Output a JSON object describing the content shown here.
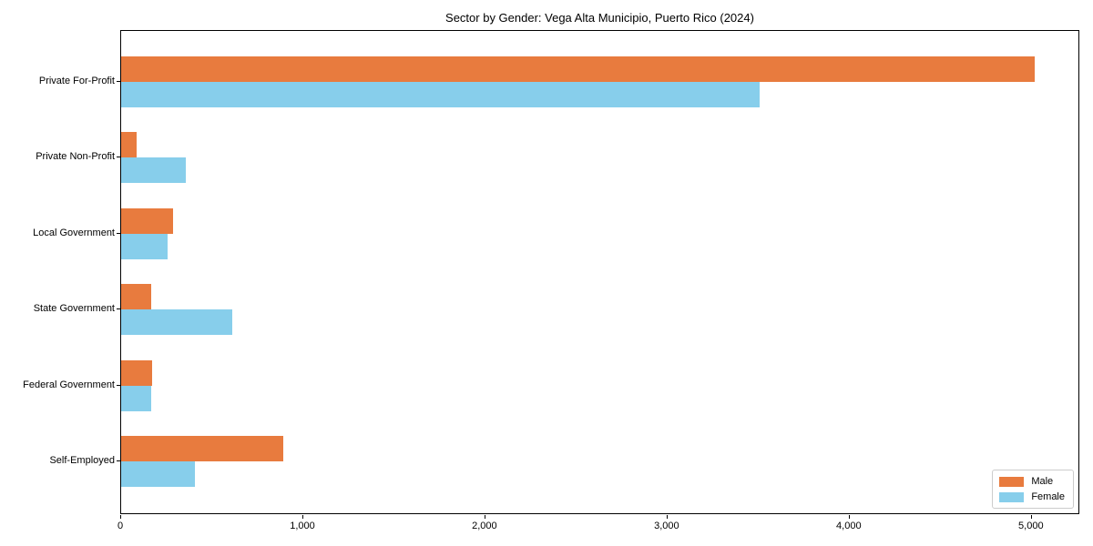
{
  "chart_data": {
    "type": "bar",
    "orientation": "horizontal",
    "title": "Sector by Gender: Vega Alta Municipio, Puerto Rico (2024)",
    "categories": [
      "Private For-Profit",
      "Private Non-Profit",
      "Local Government",
      "State Government",
      "Federal Government",
      "Self-Employed"
    ],
    "series": [
      {
        "name": "Male",
        "color": "#e87b3e",
        "values": [
          5015,
          85,
          285,
          165,
          170,
          890
        ]
      },
      {
        "name": "Female",
        "color": "#87ceeb",
        "values": [
          3505,
          355,
          255,
          610,
          165,
          405
        ]
      }
    ],
    "xlabel": "",
    "ylabel": "",
    "xlim": [
      0,
      5266
    ],
    "x_ticks": [
      0,
      1000,
      2000,
      3000,
      4000,
      5000
    ],
    "x_tick_labels": [
      "0",
      "1,000",
      "2,000",
      "3,000",
      "4,000",
      "5,000"
    ],
    "grid": false,
    "legend_position": "lower right"
  },
  "legend": {
    "items": [
      {
        "label": "Male",
        "color": "#e87b3e"
      },
      {
        "label": "Female",
        "color": "#87ceeb"
      }
    ]
  }
}
